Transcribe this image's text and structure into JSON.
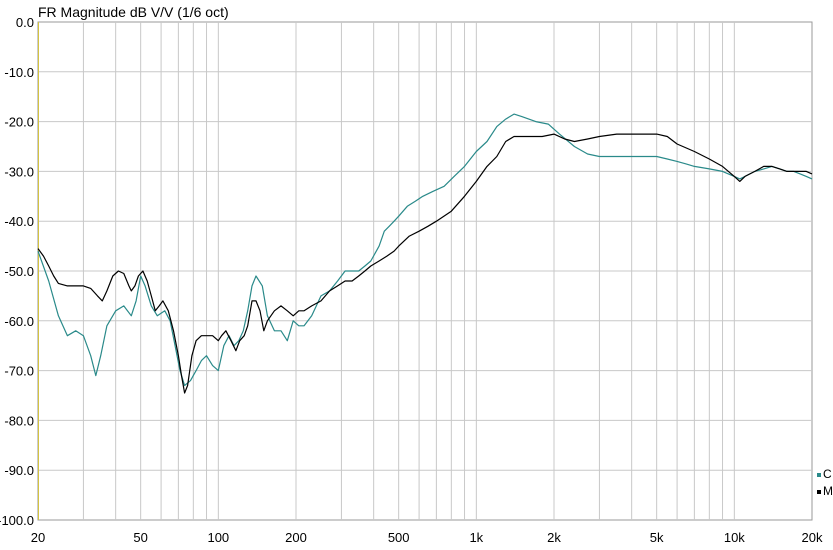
{
  "chart_data": {
    "type": "line",
    "title": "FR Magnitude dB V/V (1/6 oct)",
    "xscale": "log",
    "xlim": [
      20,
      20000
    ],
    "ylim": [
      -100,
      0
    ],
    "grid": true,
    "legend_placement": "right",
    "x_tick_labels": [
      {
        "x": 20,
        "label": "20"
      },
      {
        "x": 50,
        "label": "50"
      },
      {
        "x": 100,
        "label": "100"
      },
      {
        "x": 200,
        "label": "200"
      },
      {
        "x": 500,
        "label": "500"
      },
      {
        "x": 1000,
        "label": "1k"
      },
      {
        "x": 2000,
        "label": "2k"
      },
      {
        "x": 5000,
        "label": "5k"
      },
      {
        "x": 10000,
        "label": "10k"
      },
      {
        "x": 20000,
        "label": "20k"
      }
    ],
    "y_tick_labels": [
      "0.0",
      "-10.0",
      "-20.0",
      "-30.0",
      "-40.0",
      "-50.0",
      "-60.0",
      "-70.0",
      "-80.0",
      "-90.0",
      "-100.0"
    ],
    "series": [
      {
        "name": "C",
        "color": "#2a8a8a",
        "points": [
          [
            20,
            -46
          ],
          [
            22,
            -52
          ],
          [
            24,
            -59
          ],
          [
            26,
            -63
          ],
          [
            28,
            -62
          ],
          [
            30,
            -63
          ],
          [
            32,
            -67
          ],
          [
            33.5,
            -71
          ],
          [
            35,
            -67
          ],
          [
            37,
            -61
          ],
          [
            40,
            -58
          ],
          [
            43,
            -57
          ],
          [
            46,
            -59
          ],
          [
            48,
            -56
          ],
          [
            50,
            -51
          ],
          [
            52,
            -53
          ],
          [
            55,
            -57
          ],
          [
            58,
            -59
          ],
          [
            62,
            -58
          ],
          [
            65,
            -60
          ],
          [
            68,
            -65
          ],
          [
            71,
            -70
          ],
          [
            74,
            -73
          ],
          [
            78,
            -72
          ],
          [
            82,
            -70
          ],
          [
            86,
            -68
          ],
          [
            90,
            -67
          ],
          [
            95,
            -69
          ],
          [
            100,
            -70
          ],
          [
            105,
            -65
          ],
          [
            110,
            -63
          ],
          [
            115,
            -65
          ],
          [
            120,
            -64
          ],
          [
            125,
            -62
          ],
          [
            130,
            -58
          ],
          [
            135,
            -53
          ],
          [
            140,
            -51
          ],
          [
            148,
            -53
          ],
          [
            155,
            -59
          ],
          [
            165,
            -62
          ],
          [
            175,
            -62
          ],
          [
            185,
            -64
          ],
          [
            195,
            -60
          ],
          [
            205,
            -61
          ],
          [
            215,
            -61
          ],
          [
            230,
            -59
          ],
          [
            250,
            -55
          ],
          [
            270,
            -54
          ],
          [
            290,
            -52
          ],
          [
            310,
            -50
          ],
          [
            330,
            -50
          ],
          [
            350,
            -50
          ],
          [
            370,
            -49
          ],
          [
            390,
            -48
          ],
          [
            420,
            -45
          ],
          [
            440,
            -42
          ],
          [
            460,
            -41
          ],
          [
            480,
            -40
          ],
          [
            500,
            -39
          ],
          [
            540,
            -37
          ],
          [
            580,
            -36
          ],
          [
            620,
            -35
          ],
          [
            680,
            -34
          ],
          [
            750,
            -33
          ],
          [
            820,
            -31
          ],
          [
            900,
            -29
          ],
          [
            1000,
            -26
          ],
          [
            1100,
            -24
          ],
          [
            1200,
            -21
          ],
          [
            1300,
            -19.5
          ],
          [
            1400,
            -18.5
          ],
          [
            1500,
            -19
          ],
          [
            1700,
            -20
          ],
          [
            1900,
            -20.5
          ],
          [
            2100,
            -22.5
          ],
          [
            2400,
            -25
          ],
          [
            2700,
            -26.5
          ],
          [
            3000,
            -27
          ],
          [
            3500,
            -27
          ],
          [
            4000,
            -27
          ],
          [
            4500,
            -27
          ],
          [
            5000,
            -27
          ],
          [
            5500,
            -27.5
          ],
          [
            6000,
            -28
          ],
          [
            6500,
            -28.5
          ],
          [
            7000,
            -29
          ],
          [
            8000,
            -29.5
          ],
          [
            9000,
            -30
          ],
          [
            10000,
            -31
          ],
          [
            10500,
            -31.5
          ],
          [
            11000,
            -31
          ],
          [
            12000,
            -30
          ],
          [
            13000,
            -29.5
          ],
          [
            14000,
            -29
          ],
          [
            15000,
            -29.5
          ],
          [
            16000,
            -30
          ],
          [
            17000,
            -30
          ],
          [
            18000,
            -30.5
          ],
          [
            19000,
            -31
          ],
          [
            20000,
            -31.5
          ]
        ]
      },
      {
        "name": "M",
        "color": "#000000",
        "points": [
          [
            20,
            -45.5
          ],
          [
            21,
            -47
          ],
          [
            22,
            -49
          ],
          [
            23,
            -51
          ],
          [
            24,
            -52.5
          ],
          [
            26,
            -53
          ],
          [
            28,
            -53
          ],
          [
            30,
            -53
          ],
          [
            32,
            -53.5
          ],
          [
            34,
            -55
          ],
          [
            35.5,
            -56
          ],
          [
            37,
            -54
          ],
          [
            39,
            -51
          ],
          [
            41,
            -50
          ],
          [
            43,
            -50.5
          ],
          [
            45,
            -53
          ],
          [
            46,
            -54
          ],
          [
            47.5,
            -53
          ],
          [
            49,
            -51
          ],
          [
            51,
            -50
          ],
          [
            53,
            -52
          ],
          [
            55,
            -55
          ],
          [
            57,
            -58
          ],
          [
            59,
            -57
          ],
          [
            61,
            -56
          ],
          [
            64,
            -58
          ],
          [
            67,
            -62
          ],
          [
            70,
            -67
          ],
          [
            72,
            -71
          ],
          [
            74,
            -74.5
          ],
          [
            76,
            -73
          ],
          [
            79,
            -67
          ],
          [
            82,
            -64
          ],
          [
            86,
            -63
          ],
          [
            90,
            -63
          ],
          [
            95,
            -63
          ],
          [
            100,
            -64
          ],
          [
            103,
            -63
          ],
          [
            107,
            -62
          ],
          [
            112,
            -64
          ],
          [
            117,
            -66
          ],
          [
            121,
            -64
          ],
          [
            126,
            -63
          ],
          [
            130,
            -61
          ],
          [
            135,
            -56
          ],
          [
            140,
            -56
          ],
          [
            145,
            -58
          ],
          [
            150,
            -62
          ],
          [
            155,
            -60
          ],
          [
            165,
            -58
          ],
          [
            175,
            -57
          ],
          [
            185,
            -58
          ],
          [
            195,
            -59
          ],
          [
            205,
            -58
          ],
          [
            215,
            -58
          ],
          [
            230,
            -57
          ],
          [
            250,
            -56
          ],
          [
            270,
            -54
          ],
          [
            290,
            -53
          ],
          [
            310,
            -52
          ],
          [
            330,
            -52
          ],
          [
            350,
            -51
          ],
          [
            370,
            -50
          ],
          [
            390,
            -49
          ],
          [
            420,
            -48
          ],
          [
            450,
            -47
          ],
          [
            480,
            -46
          ],
          [
            500,
            -45
          ],
          [
            550,
            -43
          ],
          [
            600,
            -42
          ],
          [
            650,
            -41
          ],
          [
            700,
            -40
          ],
          [
            800,
            -38
          ],
          [
            900,
            -35
          ],
          [
            1000,
            -32
          ],
          [
            1100,
            -29
          ],
          [
            1200,
            -27
          ],
          [
            1300,
            -24
          ],
          [
            1400,
            -23
          ],
          [
            1600,
            -23
          ],
          [
            1800,
            -23
          ],
          [
            2000,
            -22.5
          ],
          [
            2200,
            -23.5
          ],
          [
            2400,
            -24
          ],
          [
            2700,
            -23.5
          ],
          [
            3000,
            -23
          ],
          [
            3500,
            -22.5
          ],
          [
            4000,
            -22.5
          ],
          [
            4500,
            -22.5
          ],
          [
            5000,
            -22.5
          ],
          [
            5500,
            -23
          ],
          [
            6000,
            -24.5
          ],
          [
            7000,
            -26
          ],
          [
            8000,
            -27.5
          ],
          [
            9000,
            -29
          ],
          [
            10000,
            -31
          ],
          [
            10500,
            -32
          ],
          [
            11000,
            -31
          ],
          [
            12000,
            -30
          ],
          [
            13000,
            -29
          ],
          [
            14000,
            -29
          ],
          [
            15000,
            -29.5
          ],
          [
            16000,
            -30
          ],
          [
            17000,
            -30
          ],
          [
            18000,
            -30
          ],
          [
            19000,
            -30
          ],
          [
            20000,
            -30.5
          ]
        ]
      }
    ]
  }
}
